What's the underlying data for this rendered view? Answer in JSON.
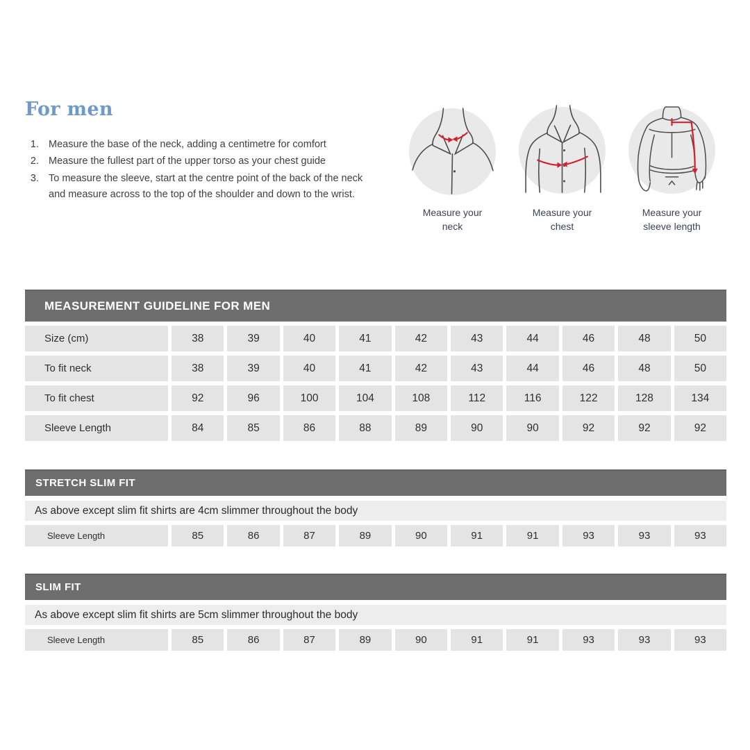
{
  "intro": {
    "title": "For men",
    "instructions": [
      "Measure the base of the neck, adding a centimetre for comfort",
      "Measure the fullest part of the upper torso as your chest guide",
      "To measure the sleeve, start at the centre point of the back of the neck and measure across to the top of the shoulder and down to the wrist."
    ]
  },
  "figures": [
    {
      "name": "measure-neck",
      "caption_line1": "Measure your",
      "caption_line2": "neck"
    },
    {
      "name": "measure-chest",
      "caption_line1": "Measure your",
      "caption_line2": "chest"
    },
    {
      "name": "measure-sleeve",
      "caption_line1": "Measure your",
      "caption_line2": "sleeve length"
    }
  ],
  "measurement_table": {
    "title": "MEASUREMENT GUIDELINE FOR MEN",
    "rows": [
      {
        "label": "Size (cm)",
        "values": [
          "38",
          "39",
          "40",
          "41",
          "42",
          "43",
          "44",
          "46",
          "48",
          "50"
        ]
      },
      {
        "label": "To fit neck",
        "values": [
          "38",
          "39",
          "40",
          "41",
          "42",
          "43",
          "44",
          "46",
          "48",
          "50"
        ]
      },
      {
        "label": "To fit chest",
        "values": [
          "92",
          "96",
          "100",
          "104",
          "108",
          "112",
          "116",
          "122",
          "128",
          "134"
        ]
      },
      {
        "label": "Sleeve Length",
        "values": [
          "84",
          "85",
          "86",
          "88",
          "89",
          "90",
          "90",
          "92",
          "92",
          "92"
        ]
      }
    ]
  },
  "stretch_slim_fit": {
    "title": "STRETCH SLIM FIT",
    "note": "As above except slim fit shirts are 4cm slimmer throughout the body",
    "row_label": "Sleeve Length",
    "values": [
      "85",
      "86",
      "87",
      "89",
      "90",
      "91",
      "91",
      "93",
      "93",
      "93"
    ]
  },
  "slim_fit": {
    "title": "SLIM FIT",
    "note": "As above except slim fit shirts are 5cm slimmer throughout the body",
    "row_label": "Sleeve Length",
    "values": [
      "85",
      "86",
      "87",
      "89",
      "90",
      "91",
      "91",
      "93",
      "93",
      "93"
    ]
  },
  "colors": {
    "heading_blue": "#6d9ac9",
    "bar_gray": "#6e6e6e",
    "cell_gray": "#e4e4e4",
    "note_gray": "#ededed",
    "circle_gray": "#e9e9e9",
    "arrow_red": "#cf2130",
    "text_dark": "#2f2f2f",
    "caption_navy": "#3d4356"
  }
}
